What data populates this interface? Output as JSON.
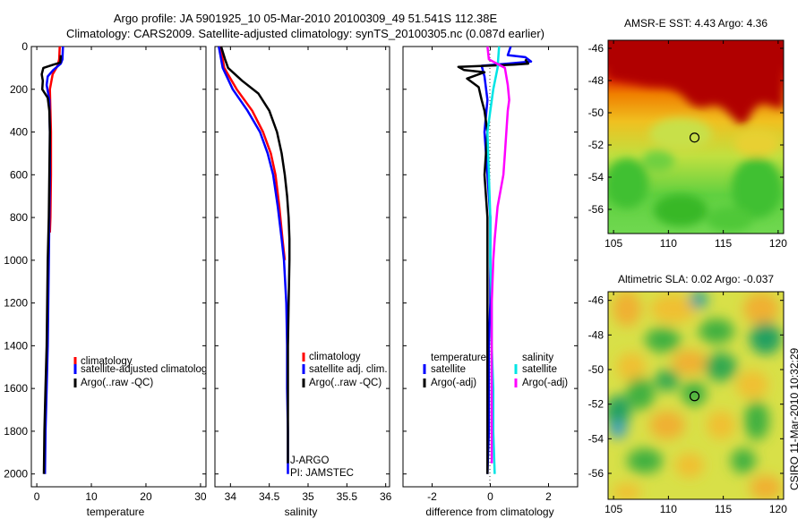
{
  "header": {
    "title_line1": "Argo profile: JA 5901925_10 05-Mar-2010 20100309_49 51.541S 112.38E",
    "title_line2": "Climatology: CARS2009. Satellite-adjusted climatology: synTS_20100305.nc (0.087d earlier)"
  },
  "colors": {
    "climatology": "#ff0000",
    "satellite": "#0000ff",
    "argo": "#000000",
    "salinity_satellite": "#00e5e5",
    "salinity_argo": "#ff00ff"
  },
  "chart_data": [
    {
      "type": "line",
      "xlabel": "temperature",
      "ylabel": "",
      "xlim": [
        -1,
        31
      ],
      "ylim": [
        2060,
        0
      ],
      "y_reversed": true,
      "xticks": [
        0,
        10,
        20,
        30
      ],
      "xtick_labels": [
        "0",
        "10",
        "20",
        "30"
      ],
      "yticks": [
        0,
        200,
        400,
        600,
        800,
        1000,
        1200,
        1400,
        1600,
        1800,
        2000
      ],
      "ytick_labels": [
        "0",
        "200",
        "400",
        "600",
        "800",
        "1000",
        "1200",
        "1400",
        "1600",
        "1800",
        "2000"
      ],
      "legend": [
        "climatology",
        "satellite-adjusted climatolog",
        "Argo(..raw -QC)"
      ],
      "series": [
        {
          "name": "climatology",
          "color": "#ff0000",
          "points": [
            [
              4.2,
              0
            ],
            [
              4.1,
              60
            ],
            [
              3.8,
              90
            ],
            [
              2.9,
              130
            ],
            [
              2.4,
              200
            ],
            [
              2.5,
              300
            ],
            [
              2.6,
              400
            ],
            [
              2.6,
              600
            ],
            [
              2.5,
              800
            ],
            [
              2.4,
              870
            ]
          ]
        },
        {
          "name": "satellite-adjusted climatolog",
          "color": "#0000ff",
          "points": [
            [
              4.8,
              0
            ],
            [
              4.7,
              60
            ],
            [
              4.4,
              80
            ],
            [
              3.0,
              110
            ],
            [
              2.0,
              140
            ],
            [
              1.8,
              180
            ],
            [
              2.3,
              250
            ],
            [
              2.4,
              400
            ],
            [
              2.4,
              600
            ],
            [
              2.3,
              800
            ],
            [
              2.2,
              1000
            ],
            [
              2.1,
              1200
            ],
            [
              2.0,
              1400
            ],
            [
              1.8,
              1600
            ],
            [
              1.6,
              1800
            ],
            [
              1.5,
              2000
            ]
          ]
        },
        {
          "name": "Argo(..raw -QC)",
          "color": "#000000",
          "points": [
            [
              4.4,
              40
            ],
            [
              4.3,
              75
            ],
            [
              3.0,
              85
            ],
            [
              1.2,
              100
            ],
            [
              0.9,
              130
            ],
            [
              1.1,
              160
            ],
            [
              1.0,
              200
            ],
            [
              2.0,
              240
            ],
            [
              2.3,
              300
            ],
            [
              2.4,
              400
            ],
            [
              2.3,
              600
            ],
            [
              2.2,
              800
            ],
            [
              2.0,
              1000
            ],
            [
              1.9,
              1200
            ],
            [
              1.8,
              1400
            ],
            [
              1.6,
              1600
            ],
            [
              1.4,
              1800
            ],
            [
              1.3,
              2000
            ]
          ]
        }
      ]
    },
    {
      "type": "line",
      "xlabel": "salinity",
      "ylabel": "",
      "xlim": [
        33.8,
        36.05
      ],
      "ylim": [
        2060,
        0
      ],
      "y_reversed": true,
      "xticks": [
        34,
        34.5,
        35,
        35.5,
        36
      ],
      "xtick_labels": [
        "34",
        "34.5",
        "35",
        "35.5",
        "36"
      ],
      "legend": [
        "climatology",
        "satellite adj. clim.",
        "Argo(..raw -QC)"
      ],
      "annotations": [
        "J-ARGO",
        "PI: JAMSTEC"
      ],
      "series": [
        {
          "name": "climatology",
          "color": "#ff0000",
          "points": [
            [
              33.87,
              0
            ],
            [
              33.92,
              100
            ],
            [
              34.08,
              200
            ],
            [
              34.28,
              300
            ],
            [
              34.42,
              400
            ],
            [
              34.52,
              500
            ],
            [
              34.58,
              600
            ],
            [
              34.63,
              750
            ],
            [
              34.67,
              900
            ],
            [
              34.7,
              1000
            ]
          ]
        },
        {
          "name": "satellite adj. clim.",
          "color": "#0000ff",
          "points": [
            [
              33.85,
              0
            ],
            [
              33.9,
              100
            ],
            [
              34.03,
              200
            ],
            [
              34.22,
              300
            ],
            [
              34.38,
              400
            ],
            [
              34.48,
              500
            ],
            [
              34.55,
              600
            ],
            [
              34.61,
              750
            ],
            [
              34.66,
              900
            ],
            [
              34.69,
              1000
            ],
            [
              34.72,
              1200
            ],
            [
              34.73,
              1400
            ],
            [
              34.73,
              1600
            ],
            [
              34.74,
              1800
            ],
            [
              34.74,
              2000
            ]
          ]
        },
        {
          "name": "Argo(..raw -QC)",
          "color": "#000000",
          "points": [
            [
              33.88,
              0
            ],
            [
              33.93,
              60
            ],
            [
              33.97,
              100
            ],
            [
              34.15,
              160
            ],
            [
              34.36,
              220
            ],
            [
              34.5,
              300
            ],
            [
              34.6,
              400
            ],
            [
              34.66,
              500
            ],
            [
              34.7,
              600
            ],
            [
              34.73,
              700
            ],
            [
              34.75,
              800
            ],
            [
              34.76,
              900
            ],
            [
              34.76,
              1000
            ],
            [
              34.75,
              1200
            ],
            [
              34.74,
              1400
            ],
            [
              34.74,
              1600
            ],
            [
              34.74,
              1800
            ],
            [
              34.74,
              1950
            ]
          ]
        }
      ]
    },
    {
      "type": "line",
      "xlabel": "difference from climatology",
      "ylabel": "",
      "xlim": [
        -3.0,
        3.0
      ],
      "ylim": [
        2060,
        0
      ],
      "y_reversed": true,
      "xticks": [
        -2,
        0,
        2
      ],
      "xtick_labels": [
        "-2",
        "0",
        "2"
      ],
      "legend": [
        "temperature",
        "satellite",
        "Argo(-adj)",
        "salinity",
        "satellite",
        "Argo(-adj)"
      ],
      "series": [
        {
          "name": "temperature satellite",
          "color": "#0000ff",
          "points": [
            [
              0.7,
              0
            ],
            [
              0.6,
              40
            ],
            [
              1.2,
              50
            ],
            [
              1.4,
              70
            ],
            [
              0.6,
              80
            ],
            [
              -0.3,
              90
            ],
            [
              -0.2,
              140
            ],
            [
              -0.1,
              250
            ],
            [
              -0.2,
              400
            ],
            [
              -0.1,
              600
            ],
            [
              0.0,
              800
            ],
            [
              0.0,
              1000
            ],
            [
              0.0,
              1200
            ],
            [
              -0.05,
              1400
            ],
            [
              -0.05,
              1600
            ],
            [
              -0.05,
              1800
            ],
            [
              -0.1,
              2000
            ]
          ]
        },
        {
          "name": "temperature Argo(-adj)",
          "color": "#000000",
          "points": [
            [
              1.2,
              60
            ],
            [
              1.3,
              80
            ],
            [
              0.8,
              85
            ],
            [
              -1.1,
              95
            ],
            [
              -0.9,
              110
            ],
            [
              -0.2,
              120
            ],
            [
              -0.8,
              150
            ],
            [
              -0.4,
              190
            ],
            [
              -0.3,
              250
            ],
            [
              -0.2,
              300
            ],
            [
              -0.1,
              400
            ],
            [
              -0.2,
              600
            ],
            [
              -0.1,
              800
            ],
            [
              -0.1,
              1000
            ],
            [
              -0.1,
              1200
            ],
            [
              -0.1,
              1400
            ],
            [
              -0.1,
              1600
            ],
            [
              -0.1,
              1800
            ],
            [
              -0.1,
              2000
            ]
          ]
        },
        {
          "name": "salinity satellite",
          "color": "#00e5e5",
          "points": [
            [
              0.3,
              0
            ],
            [
              0.25,
              100
            ],
            [
              0.1,
              200
            ],
            [
              0.0,
              300
            ],
            [
              -0.1,
              400
            ],
            [
              -0.05,
              600
            ],
            [
              0.0,
              800
            ],
            [
              0.0,
              1000
            ],
            [
              0.05,
              1200
            ],
            [
              0.05,
              1400
            ],
            [
              0.1,
              1600
            ],
            [
              0.1,
              1800
            ],
            [
              0.15,
              2000
            ]
          ]
        },
        {
          "name": "salinity Argo(-adj)",
          "color": "#ff00ff",
          "points": [
            [
              -0.1,
              0
            ],
            [
              -0.05,
              60
            ],
            [
              0.5,
              100
            ],
            [
              0.6,
              180
            ],
            [
              0.65,
              250
            ],
            [
              0.6,
              300
            ],
            [
              0.55,
              400
            ],
            [
              0.5,
              500
            ],
            [
              0.45,
              600
            ],
            [
              0.25,
              750
            ],
            [
              0.15,
              900
            ],
            [
              0.1,
              1000
            ],
            [
              0.05,
              1200
            ],
            [
              0.05,
              1400
            ],
            [
              0.05,
              1600
            ],
            [
              0.05,
              1800
            ],
            [
              0.05,
              1950
            ]
          ]
        }
      ]
    },
    {
      "type": "heatmap",
      "title": "AMSR-E SST: 4.43 Argo: 4.36",
      "xlim": [
        104.5,
        120.5
      ],
      "ylim": [
        -57.5,
        -45.5
      ],
      "xticks": [
        105,
        110,
        115,
        120
      ],
      "xtick_labels": [
        "105",
        "110",
        "115",
        "120"
      ],
      "yticks": [
        -46,
        -48,
        -50,
        -52,
        -54,
        -56
      ],
      "ytick_labels": [
        "-46",
        "-48",
        "-50",
        "-52",
        "-54",
        "-56"
      ],
      "marker": {
        "lon": 112.38,
        "lat": -51.54
      }
    },
    {
      "type": "heatmap",
      "title": "Altimetric SLA: 0.02 Argo: -0.037",
      "xlim": [
        104.5,
        120.5
      ],
      "ylim": [
        -57.5,
        -45.5
      ],
      "xticks": [
        105,
        110,
        115,
        120
      ],
      "xtick_labels": [
        "105",
        "110",
        "115",
        "120"
      ],
      "yticks": [
        -46,
        -48,
        -50,
        -52,
        -54,
        -56
      ],
      "ytick_labels": [
        "-46",
        "-48",
        "-50",
        "-52",
        "-54",
        "-56"
      ],
      "marker": {
        "lon": 112.38,
        "lat": -51.54
      }
    }
  ],
  "footer": {
    "credit": "CSIRO 11-Mar-2010 10:32:29"
  }
}
